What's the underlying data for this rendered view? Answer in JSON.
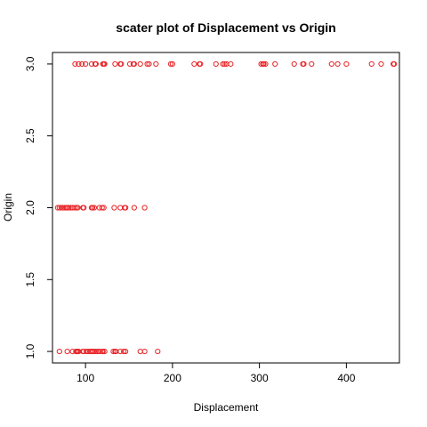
{
  "chart_data": {
    "type": "scatter",
    "title": "scater plot of Displacement vs Origin",
    "xlabel": "Displacement",
    "ylabel": "Origin",
    "xlim": [
      62,
      461
    ],
    "ylim": [
      0.92,
      3.08
    ],
    "x_ticks": [
      100,
      200,
      300,
      400
    ],
    "y_ticks": [
      1.0,
      1.5,
      2.0,
      2.5,
      3.0
    ],
    "x_tick_labels": [
      "100",
      "200",
      "300",
      "400"
    ],
    "y_tick_labels": [
      "1.0",
      "1.5",
      "2.0",
      "2.5",
      "3.0"
    ],
    "marker": "open-circle",
    "color": "#e8262a",
    "grid": false,
    "legend": "none",
    "points": [
      {
        "x": 88,
        "y": 3
      },
      {
        "x": 92,
        "y": 3
      },
      {
        "x": 96,
        "y": 3
      },
      {
        "x": 100,
        "y": 3
      },
      {
        "x": 107,
        "y": 3
      },
      {
        "x": 111,
        "y": 3
      },
      {
        "x": 112,
        "y": 3
      },
      {
        "x": 120,
        "y": 3
      },
      {
        "x": 121,
        "y": 3
      },
      {
        "x": 122,
        "y": 3
      },
      {
        "x": 134,
        "y": 3
      },
      {
        "x": 140,
        "y": 3
      },
      {
        "x": 141,
        "y": 3
      },
      {
        "x": 151,
        "y": 3
      },
      {
        "x": 155,
        "y": 3
      },
      {
        "x": 156,
        "y": 3
      },
      {
        "x": 163,
        "y": 3
      },
      {
        "x": 171,
        "y": 3
      },
      {
        "x": 173,
        "y": 3
      },
      {
        "x": 181,
        "y": 3
      },
      {
        "x": 198,
        "y": 3
      },
      {
        "x": 200,
        "y": 3
      },
      {
        "x": 225,
        "y": 3
      },
      {
        "x": 231,
        "y": 3
      },
      {
        "x": 232,
        "y": 3
      },
      {
        "x": 250,
        "y": 3
      },
      {
        "x": 258,
        "y": 3
      },
      {
        "x": 260,
        "y": 3
      },
      {
        "x": 262,
        "y": 3
      },
      {
        "x": 267,
        "y": 3
      },
      {
        "x": 302,
        "y": 3
      },
      {
        "x": 304,
        "y": 3
      },
      {
        "x": 305,
        "y": 3
      },
      {
        "x": 307,
        "y": 3
      },
      {
        "x": 318,
        "y": 3
      },
      {
        "x": 340,
        "y": 3
      },
      {
        "x": 350,
        "y": 3
      },
      {
        "x": 351,
        "y": 3
      },
      {
        "x": 360,
        "y": 3
      },
      {
        "x": 383,
        "y": 3
      },
      {
        "x": 390,
        "y": 3
      },
      {
        "x": 400,
        "y": 3
      },
      {
        "x": 429,
        "y": 3
      },
      {
        "x": 440,
        "y": 3
      },
      {
        "x": 454,
        "y": 3
      },
      {
        "x": 455,
        "y": 3
      },
      {
        "x": 68,
        "y": 2
      },
      {
        "x": 70,
        "y": 2
      },
      {
        "x": 72,
        "y": 2
      },
      {
        "x": 74,
        "y": 2
      },
      {
        "x": 76,
        "y": 2
      },
      {
        "x": 78,
        "y": 2
      },
      {
        "x": 79,
        "y": 2
      },
      {
        "x": 81,
        "y": 2
      },
      {
        "x": 83,
        "y": 2
      },
      {
        "x": 85,
        "y": 2
      },
      {
        "x": 88,
        "y": 2
      },
      {
        "x": 90,
        "y": 2
      },
      {
        "x": 91,
        "y": 2
      },
      {
        "x": 97,
        "y": 2
      },
      {
        "x": 98,
        "y": 2
      },
      {
        "x": 107,
        "y": 2
      },
      {
        "x": 108,
        "y": 2
      },
      {
        "x": 110,
        "y": 2
      },
      {
        "x": 116,
        "y": 2
      },
      {
        "x": 119,
        "y": 2
      },
      {
        "x": 121,
        "y": 2
      },
      {
        "x": 133,
        "y": 2
      },
      {
        "x": 140,
        "y": 2
      },
      {
        "x": 145,
        "y": 2
      },
      {
        "x": 146,
        "y": 2
      },
      {
        "x": 156,
        "y": 2
      },
      {
        "x": 168,
        "y": 2
      },
      {
        "x": 70,
        "y": 1
      },
      {
        "x": 79,
        "y": 1
      },
      {
        "x": 85,
        "y": 1
      },
      {
        "x": 89,
        "y": 1
      },
      {
        "x": 90,
        "y": 1
      },
      {
        "x": 91,
        "y": 1
      },
      {
        "x": 92,
        "y": 1
      },
      {
        "x": 97,
        "y": 1
      },
      {
        "x": 98,
        "y": 1
      },
      {
        "x": 101,
        "y": 1
      },
      {
        "x": 103,
        "y": 1
      },
      {
        "x": 105,
        "y": 1
      },
      {
        "x": 107,
        "y": 1
      },
      {
        "x": 108,
        "y": 1
      },
      {
        "x": 110,
        "y": 1
      },
      {
        "x": 112,
        "y": 1
      },
      {
        "x": 114,
        "y": 1
      },
      {
        "x": 116,
        "y": 1
      },
      {
        "x": 119,
        "y": 1
      },
      {
        "x": 120,
        "y": 1
      },
      {
        "x": 122,
        "y": 1
      },
      {
        "x": 132,
        "y": 1
      },
      {
        "x": 134,
        "y": 1
      },
      {
        "x": 135,
        "y": 1
      },
      {
        "x": 140,
        "y": 1
      },
      {
        "x": 144,
        "y": 1
      },
      {
        "x": 146,
        "y": 1
      },
      {
        "x": 163,
        "y": 1
      },
      {
        "x": 168,
        "y": 1
      },
      {
        "x": 183,
        "y": 1
      }
    ]
  }
}
